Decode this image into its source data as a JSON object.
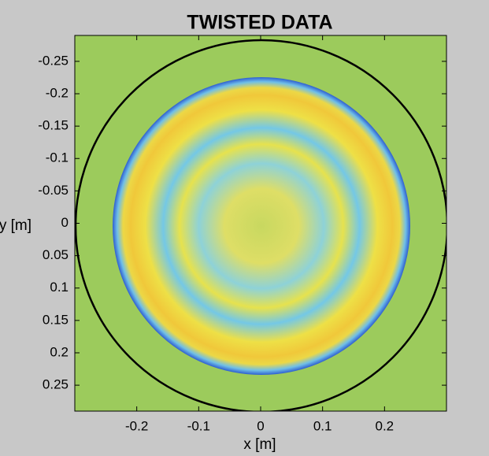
{
  "chart_data": {
    "type": "image",
    "title": "TWISTED DATA",
    "xlabel": "x [m]",
    "ylabel": "y [m]",
    "xlim": [
      -0.3,
      0.3
    ],
    "ylim": [
      -0.29,
      0.29
    ],
    "xticks": [
      -0.2,
      -0.1,
      0,
      0.1,
      0.2
    ],
    "yticks": [
      -0.25,
      -0.2,
      -0.15,
      -0.1,
      -0.05,
      0,
      0.05,
      0.1,
      0.15,
      0.2,
      0.25
    ]
  }
}
